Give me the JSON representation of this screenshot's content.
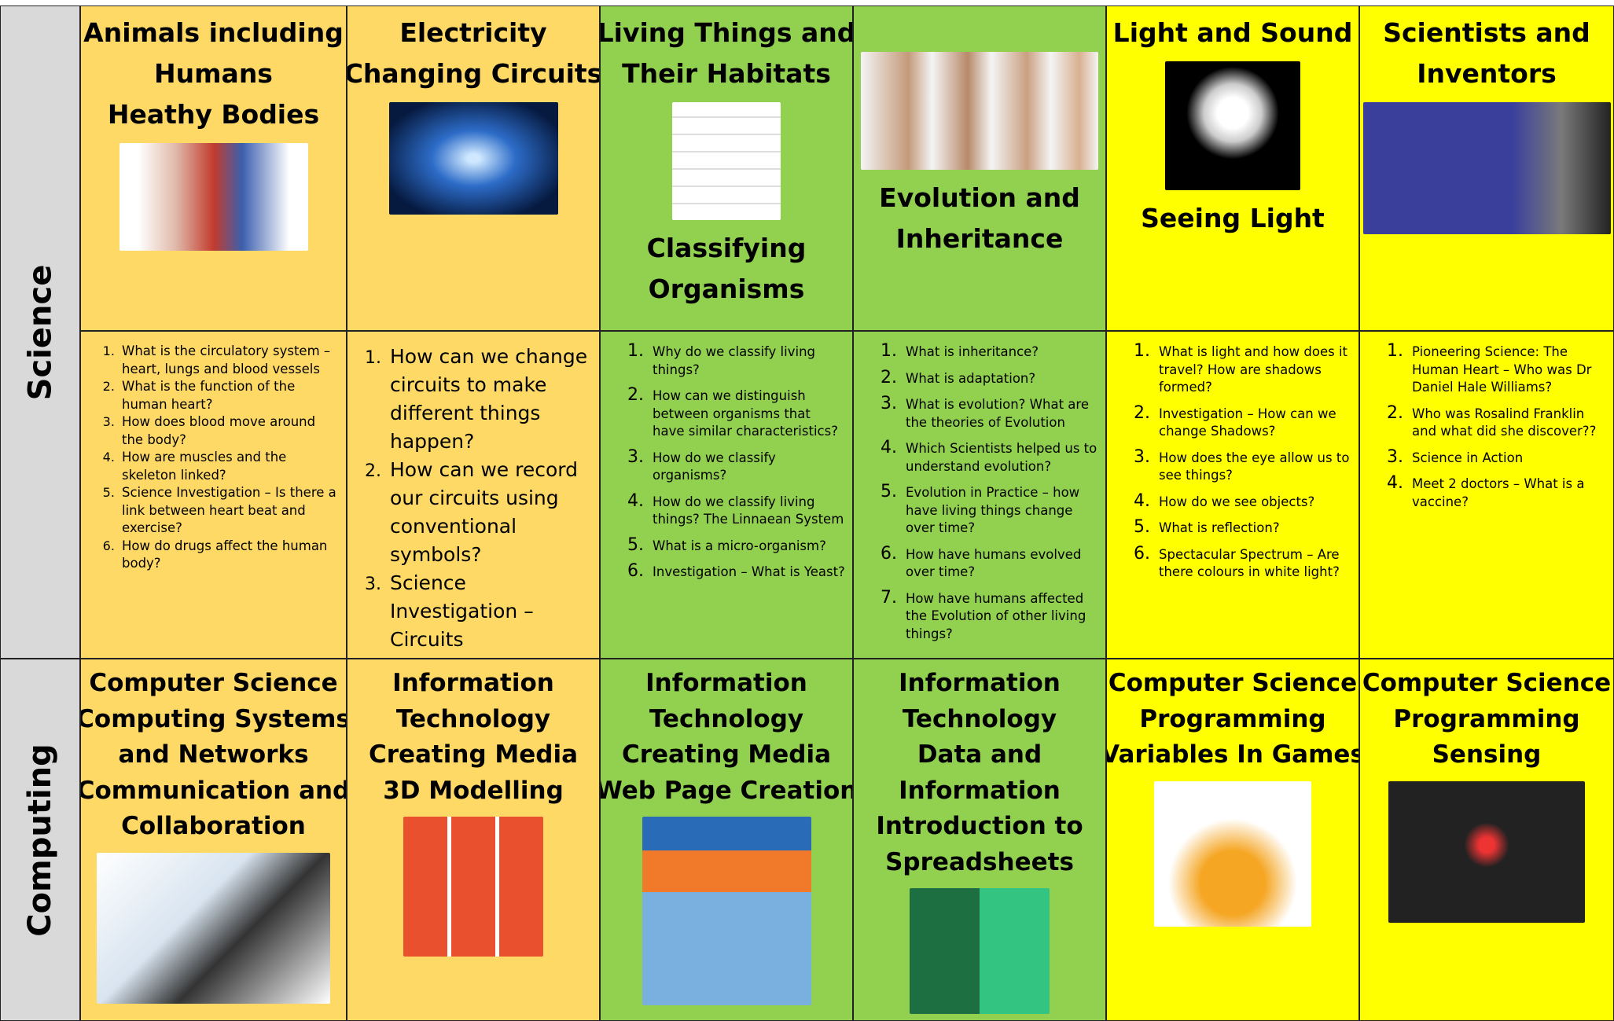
{
  "rows": [
    {
      "label": "Science",
      "topics": [
        {
          "title": [
            "Animals including",
            "Humans",
            "Heathy Bodies"
          ],
          "color": "#ffd966"
        },
        {
          "title": [
            "Electricity",
            "Changing Circuits"
          ],
          "color": "#ffd966"
        },
        {
          "title": [
            "Living Things and",
            "Their Habitats"
          ],
          "caption": [
            "Classifying",
            "Organisms"
          ],
          "color": "#92d050"
        },
        {
          "caption": [
            "Evolution and",
            "Inheritance"
          ],
          "color": "#92d050"
        },
        {
          "title": [
            "Light and Sound"
          ],
          "caption": [
            "Seeing Light"
          ],
          "color": "#ffff00"
        },
        {
          "title": [
            "Scientists and",
            "Inventors"
          ],
          "color": "#ffff00"
        }
      ],
      "questions": [
        [
          "What is the circulatory system – heart, lungs and blood vessels",
          "What is the function of the human heart?",
          "How does blood move around the body?",
          "How are muscles and the skeleton linked?",
          "Science Investigation – Is there a link between heart beat and exercise?",
          "How do drugs affect the human body?"
        ],
        [
          "How can we change circuits to make different things happen?",
          "How can we record our circuits using conventional symbols?",
          "Science Investigation – Circuits"
        ],
        [
          "Why do we classify living things?",
          "How can we distinguish between organisms that have similar characteristics?",
          "How do we classify organisms?",
          "How do we classify living things? The Linnaean System",
          "What is a micro-organism?",
          "Investigation – What is Yeast?"
        ],
        [
          "What is inheritance?",
          "What is adaptation?",
          "What is evolution?  What are the theories of Evolution",
          "Which Scientists helped us to understand evolution?",
          "Evolution in Practice –  how have living things change over time?",
          "How have humans evolved over time?",
          "How have humans affected the Evolution of other living things?"
        ],
        [
          "What is light and how does it travel?  How are shadows formed?",
          "Investigation – How can we change Shadows?",
          "How does the eye allow us to see things?",
          "How do we see objects?",
          "What is reflection?",
          "Spectacular Spectrum – Are there colours in white light?"
        ],
        [
          "Pioneering Science: The Human Heart – Who was Dr Daniel Hale Williams?",
          "Who was Rosalind Franklin and what did she discover??",
          "Science in Action",
          "Meet 2 doctors – What is a vaccine?"
        ]
      ]
    },
    {
      "label": "Computing",
      "topics": [
        {
          "title": [
            "Computer Science",
            "Computing Systems",
            "and Networks",
            "Communication and",
            "Collaboration"
          ],
          "color": "#ffd966"
        },
        {
          "title": [
            "Information",
            "Technology",
            "Creating Media",
            "3D Modelling"
          ],
          "color": "#ffd966"
        },
        {
          "title": [
            "Information",
            "Technology",
            "Creating Media",
            "Web Page Creation"
          ],
          "color": "#92d050"
        },
        {
          "title": [
            "Information",
            "Technology",
            "Data and",
            "Information",
            "Introduction to",
            "Spreadsheets"
          ],
          "color": "#92d050"
        },
        {
          "title": [
            "Computer Science",
            "Programming",
            "Variables In Games"
          ],
          "color": "#ffff00"
        },
        {
          "title": [
            "Computer Science",
            "Programming",
            "Sensing"
          ],
          "color": "#ffff00"
        }
      ]
    }
  ]
}
